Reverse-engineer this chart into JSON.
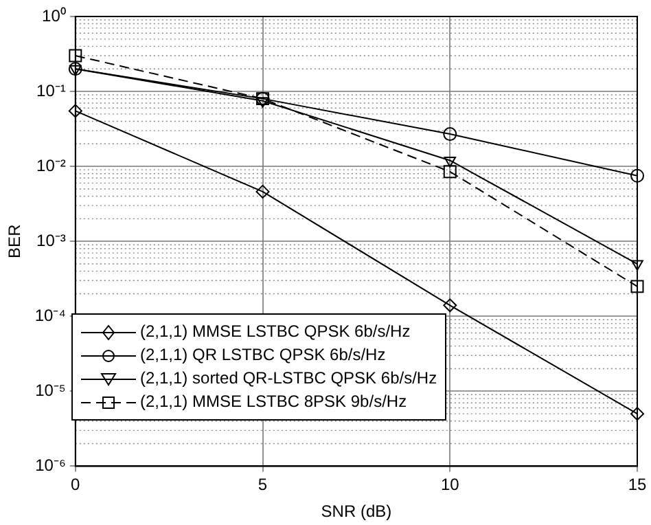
{
  "chart_data": {
    "type": "line",
    "xlabel": "SNR (dB)",
    "ylabel": "BER",
    "x": [
      0,
      5,
      10,
      15
    ],
    "series": [
      {
        "name": "(2,1,1) MMSE LSTBC QPSK 6b/s/Hz",
        "color": "#000000",
        "marker": "diamond",
        "line_style": "solid",
        "values": [
          0.055,
          0.0046,
          0.00014,
          5e-06
        ]
      },
      {
        "name": "(2,1,1) QR LSTBC QPSK 6b/s/Hz",
        "color": "#000000",
        "marker": "circle",
        "line_style": "solid",
        "values": [
          0.2,
          0.08,
          0.027,
          0.0075
        ]
      },
      {
        "name": "(2,1,1) sorted QR-LSTBC QPSK 6b/s/Hz",
        "color": "#000000",
        "marker": "triangle",
        "line_style": "solid",
        "values": [
          0.2,
          0.075,
          0.012,
          0.0005
        ]
      },
      {
        "name": "(2,1,1) MMSE LSTBC 8PSK 9b/s/Hz",
        "color": "#000000",
        "marker": "square",
        "line_style": "dashed",
        "values": [
          0.3,
          0.08,
          0.0085,
          0.00025
        ]
      }
    ],
    "xlim": [
      0,
      15
    ],
    "xticks": [
      0,
      5,
      10,
      15
    ],
    "ylim": [
      1e-06,
      1
    ],
    "yticks": [
      {
        "value": 1e-06,
        "label": "10⁻⁶"
      },
      {
        "value": 1e-05,
        "label": "10⁻⁵"
      },
      {
        "value": 0.0001,
        "label": "10⁻⁴"
      },
      {
        "value": 0.001,
        "label": "10⁻³"
      },
      {
        "value": 0.01,
        "label": "10⁻²"
      },
      {
        "value": 0.1,
        "label": "10⁻¹"
      },
      {
        "value": 1,
        "label": "10⁰"
      }
    ],
    "log": "y",
    "grid": true,
    "legend": "bottom left"
  }
}
